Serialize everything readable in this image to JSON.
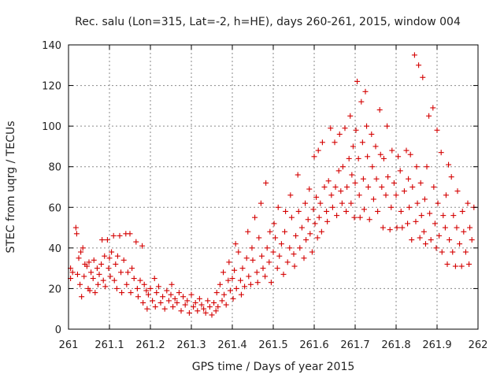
{
  "chart_data": {
    "type": "scatter",
    "title": "Rec. salu (Lon=315, Lat=-2, h=HE), days 260-261, 2015, window 004",
    "xlabel": "GPS time / Days of year 2015",
    "ylabel": "STEC from uqrg / TECUs",
    "xlim": [
      261,
      262
    ],
    "ylim": [
      0,
      140
    ],
    "x_ticks": [
      "261",
      "261.1",
      "261.2",
      "261.3",
      "261.4",
      "261.5",
      "261.6",
      "261.7",
      "261.8",
      "261.9",
      "262"
    ],
    "y_ticks": [
      "0",
      "20",
      "40",
      "60",
      "80",
      "100",
      "120",
      "140"
    ],
    "grid": true,
    "marker": "+",
    "color": "#d40000",
    "series": [
      {
        "points": [
          [
            261.005,
            30
          ],
          [
            261.005,
            25
          ],
          [
            261.01,
            28
          ],
          [
            261.018,
            50
          ],
          [
            261.02,
            47
          ],
          [
            261.022,
            27
          ],
          [
            261.025,
            35
          ],
          [
            261.028,
            22
          ],
          [
            261.03,
            38
          ],
          [
            261.032,
            16
          ],
          [
            261.035,
            40
          ],
          [
            261.038,
            26
          ],
          [
            261.04,
            32
          ],
          [
            261.045,
            31
          ],
          [
            261.048,
            20
          ],
          [
            261.05,
            33
          ],
          [
            261.052,
            19
          ],
          [
            261.055,
            28
          ],
          [
            261.06,
            25
          ],
          [
            261.062,
            34
          ],
          [
            261.065,
            18
          ],
          [
            261.07,
            30
          ],
          [
            261.072,
            22
          ],
          [
            261.075,
            27
          ],
          [
            261.08,
            32
          ],
          [
            261.082,
            44
          ],
          [
            261.085,
            24
          ],
          [
            261.088,
            36
          ],
          [
            261.09,
            21
          ],
          [
            261.095,
            44
          ],
          [
            261.098,
            30
          ],
          [
            261.1,
            35
          ],
          [
            261.102,
            26
          ],
          [
            261.105,
            38
          ],
          [
            261.11,
            46
          ],
          [
            261.112,
            24
          ],
          [
            261.115,
            32
          ],
          [
            261.118,
            20
          ],
          [
            261.12,
            36
          ],
          [
            261.125,
            46
          ],
          [
            261.128,
            28
          ],
          [
            261.13,
            18
          ],
          [
            261.135,
            34
          ],
          [
            261.14,
            47
          ],
          [
            261.142,
            22
          ],
          [
            261.145,
            28
          ],
          [
            261.15,
            47
          ],
          [
            261.152,
            18
          ],
          [
            261.155,
            30
          ],
          [
            261.16,
            25
          ],
          [
            261.165,
            43
          ],
          [
            261.168,
            20
          ],
          [
            261.17,
            16
          ],
          [
            261.175,
            24
          ],
          [
            261.18,
            41
          ],
          [
            261.182,
            13
          ],
          [
            261.185,
            22
          ],
          [
            261.19,
            19
          ],
          [
            261.192,
            10
          ],
          [
            261.195,
            17
          ],
          [
            261.2,
            20
          ],
          [
            261.205,
            14
          ],
          [
            261.21,
            25
          ],
          [
            261.212,
            11
          ],
          [
            261.215,
            18
          ],
          [
            261.22,
            21
          ],
          [
            261.225,
            13
          ],
          [
            261.23,
            16
          ],
          [
            261.235,
            10
          ],
          [
            261.24,
            19
          ],
          [
            261.245,
            14
          ],
          [
            261.25,
            17
          ],
          [
            261.252,
            22
          ],
          [
            261.255,
            11
          ],
          [
            261.26,
            15
          ],
          [
            261.265,
            13
          ],
          [
            261.27,
            18
          ],
          [
            261.275,
            9
          ],
          [
            261.28,
            16
          ],
          [
            261.285,
            12
          ],
          [
            261.29,
            14
          ],
          [
            261.295,
            8
          ],
          [
            261.3,
            17
          ],
          [
            261.305,
            11
          ],
          [
            261.31,
            13
          ],
          [
            261.315,
            9
          ],
          [
            261.32,
            15
          ],
          [
            261.325,
            12
          ],
          [
            261.33,
            10
          ],
          [
            261.335,
            8
          ],
          [
            261.34,
            14
          ],
          [
            261.345,
            11
          ],
          [
            261.35,
            7
          ],
          [
            261.355,
            13
          ],
          [
            261.36,
            9
          ],
          [
            261.362,
            18
          ],
          [
            261.365,
            11
          ],
          [
            261.37,
            22
          ],
          [
            261.375,
            14
          ],
          [
            261.378,
            28
          ],
          [
            261.38,
            17
          ],
          [
            261.385,
            12
          ],
          [
            261.39,
            24
          ],
          [
            261.392,
            33
          ],
          [
            261.395,
            19
          ],
          [
            261.4,
            25
          ],
          [
            261.402,
            15
          ],
          [
            261.405,
            29
          ],
          [
            261.408,
            42
          ],
          [
            261.41,
            20
          ],
          [
            261.415,
            38
          ],
          [
            261.42,
            24
          ],
          [
            261.422,
            17
          ],
          [
            261.425,
            30
          ],
          [
            261.43,
            21
          ],
          [
            261.435,
            35
          ],
          [
            261.438,
            48
          ],
          [
            261.44,
            26
          ],
          [
            261.445,
            22
          ],
          [
            261.448,
            40
          ],
          [
            261.45,
            34
          ],
          [
            261.455,
            55
          ],
          [
            261.46,
            28
          ],
          [
            261.462,
            23
          ],
          [
            261.465,
            45
          ],
          [
            261.47,
            62
          ],
          [
            261.472,
            36
          ],
          [
            261.475,
            30
          ],
          [
            261.48,
            26
          ],
          [
            261.482,
            72
          ],
          [
            261.485,
            40
          ],
          [
            261.49,
            33
          ],
          [
            261.492,
            48
          ],
          [
            261.495,
            23
          ],
          [
            261.5,
            38
          ],
          [
            261.502,
            52
          ],
          [
            261.505,
            45
          ],
          [
            261.51,
            30
          ],
          [
            261.512,
            60
          ],
          [
            261.515,
            36
          ],
          [
            261.52,
            42
          ],
          [
            261.525,
            27
          ],
          [
            261.528,
            48
          ],
          [
            261.53,
            58
          ],
          [
            261.535,
            33
          ],
          [
            261.54,
            40
          ],
          [
            261.542,
            66
          ],
          [
            261.545,
            55
          ],
          [
            261.55,
            37
          ],
          [
            261.552,
            31
          ],
          [
            261.555,
            46
          ],
          [
            261.56,
            76
          ],
          [
            261.562,
            58
          ],
          [
            261.565,
            40
          ],
          [
            261.57,
            50
          ],
          [
            261.575,
            35
          ],
          [
            261.578,
            62
          ],
          [
            261.58,
            44
          ],
          [
            261.585,
            54
          ],
          [
            261.588,
            69
          ],
          [
            261.59,
            47
          ],
          [
            261.595,
            38
          ],
          [
            261.598,
            59
          ],
          [
            261.6,
            85
          ],
          [
            261.602,
            52
          ],
          [
            261.605,
            65
          ],
          [
            261.608,
            45
          ],
          [
            261.61,
            88
          ],
          [
            261.612,
            55
          ],
          [
            261.615,
            62
          ],
          [
            261.618,
            48
          ],
          [
            261.62,
            92
          ],
          [
            261.625,
            70
          ],
          [
            261.63,
            58
          ],
          [
            261.632,
            53
          ],
          [
            261.635,
            73
          ],
          [
            261.64,
            99
          ],
          [
            261.642,
            66
          ],
          [
            261.645,
            60
          ],
          [
            261.65,
            92
          ],
          [
            261.652,
            70
          ],
          [
            261.655,
            56
          ],
          [
            261.66,
            78
          ],
          [
            261.662,
            96
          ],
          [
            261.665,
            68
          ],
          [
            261.668,
            62
          ],
          [
            261.67,
            80
          ],
          [
            261.675,
            99
          ],
          [
            261.678,
            58
          ],
          [
            261.68,
            70
          ],
          [
            261.685,
            84
          ],
          [
            261.688,
            105
          ],
          [
            261.69,
            62
          ],
          [
            261.692,
            76
          ],
          [
            261.695,
            90
          ],
          [
            261.698,
            55
          ],
          [
            261.7,
            72
          ],
          [
            261.702,
            98
          ],
          [
            261.705,
            122
          ],
          [
            261.708,
            84
          ],
          [
            261.71,
            66
          ],
          [
            261.712,
            55
          ],
          [
            261.715,
            112
          ],
          [
            261.718,
            92
          ],
          [
            261.72,
            74
          ],
          [
            261.722,
            59
          ],
          [
            261.725,
            117
          ],
          [
            261.728,
            100
          ],
          [
            261.73,
            85
          ],
          [
            261.732,
            70
          ],
          [
            261.735,
            54
          ],
          [
            261.74,
            96
          ],
          [
            261.742,
            80
          ],
          [
            261.745,
            64
          ],
          [
            261.75,
            90
          ],
          [
            261.752,
            74
          ],
          [
            261.755,
            58
          ],
          [
            261.76,
            108
          ],
          [
            261.762,
            86
          ],
          [
            261.765,
            70
          ],
          [
            261.768,
            50
          ],
          [
            261.77,
            84
          ],
          [
            261.775,
            66
          ],
          [
            261.778,
            100
          ],
          [
            261.78,
            75
          ],
          [
            261.785,
            49
          ],
          [
            261.788,
            60
          ],
          [
            261.79,
            88
          ],
          [
            261.795,
            72
          ],
          [
            261.8,
            66
          ],
          [
            261.802,
            50
          ],
          [
            261.805,
            85
          ],
          [
            261.81,
            78
          ],
          [
            261.812,
            58
          ],
          [
            261.815,
            50
          ],
          [
            261.82,
            68
          ],
          [
            261.825,
            88
          ],
          [
            261.828,
            52
          ],
          [
            261.83,
            74
          ],
          [
            261.832,
            60
          ],
          [
            261.835,
            86
          ],
          [
            261.838,
            44
          ],
          [
            261.84,
            70
          ],
          [
            261.845,
            135
          ],
          [
            261.848,
            53
          ],
          [
            261.85,
            80
          ],
          [
            261.852,
            62
          ],
          [
            261.855,
            130
          ],
          [
            261.858,
            45
          ],
          [
            261.86,
            72
          ],
          [
            261.862,
            56
          ],
          [
            261.865,
            124
          ],
          [
            261.868,
            48
          ],
          [
            261.87,
            64
          ],
          [
            261.872,
            42
          ],
          [
            261.875,
            80
          ],
          [
            261.88,
            105
          ],
          [
            261.882,
            57
          ],
          [
            261.885,
            44
          ],
          [
            261.89,
            109
          ],
          [
            261.892,
            70
          ],
          [
            261.895,
            52
          ],
          [
            261.898,
            40
          ],
          [
            261.9,
            98
          ],
          [
            261.902,
            62
          ],
          [
            261.905,
            46
          ],
          [
            261.91,
            87
          ],
          [
            261.912,
            38
          ],
          [
            261.915,
            56
          ],
          [
            261.92,
            50
          ],
          [
            261.922,
            66
          ],
          [
            261.925,
            32
          ],
          [
            261.928,
            81
          ],
          [
            261.93,
            44
          ],
          [
            261.935,
            75
          ],
          [
            261.938,
            38
          ],
          [
            261.94,
            56
          ],
          [
            261.945,
            31
          ],
          [
            261.948,
            50
          ],
          [
            261.95,
            68
          ],
          [
            261.955,
            42
          ],
          [
            261.96,
            31
          ],
          [
            261.962,
            58
          ],
          [
            261.965,
            48
          ],
          [
            261.97,
            38
          ],
          [
            261.975,
            62
          ],
          [
            261.978,
            32
          ],
          [
            261.98,
            50
          ],
          [
            261.985,
            44
          ],
          [
            261.99,
            60
          ]
        ]
      }
    ]
  }
}
